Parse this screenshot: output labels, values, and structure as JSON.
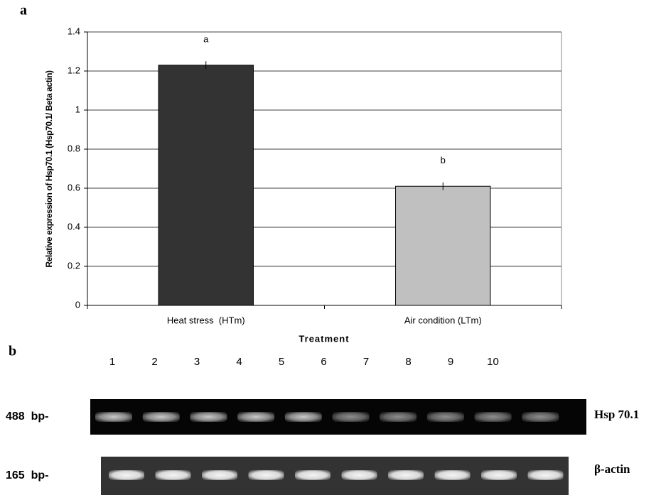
{
  "panel_labels": [
    "a",
    "b"
  ],
  "chart_data": {
    "type": "bar",
    "ylabel": "Relative expression of Hsp70.1 (Hsp70.1/ Beta actin)",
    "xlabel": "Treatment",
    "categories": [
      "Heat stress  (HTm)",
      "Air condition (LTm)"
    ],
    "values": [
      1.23,
      0.61
    ],
    "errors": [
      0.02,
      0.02
    ],
    "annotations": [
      "a",
      "b"
    ],
    "colors": [
      "#333333",
      "#c0c0c0"
    ],
    "ylim": [
      0,
      1.4
    ],
    "yticks": [
      0,
      0.2,
      0.4,
      0.6,
      0.8,
      1,
      1.2,
      1.4
    ],
    "grid": true
  },
  "gel": {
    "lanes": [
      "1",
      "2",
      "3",
      "4",
      "5",
      "6",
      "7",
      "8",
      "9",
      "10"
    ],
    "rows": [
      {
        "size": "488  bp-",
        "label": "Hsp 70.1"
      },
      {
        "size": "165  bp-",
        "label": "β-actin"
      }
    ]
  }
}
